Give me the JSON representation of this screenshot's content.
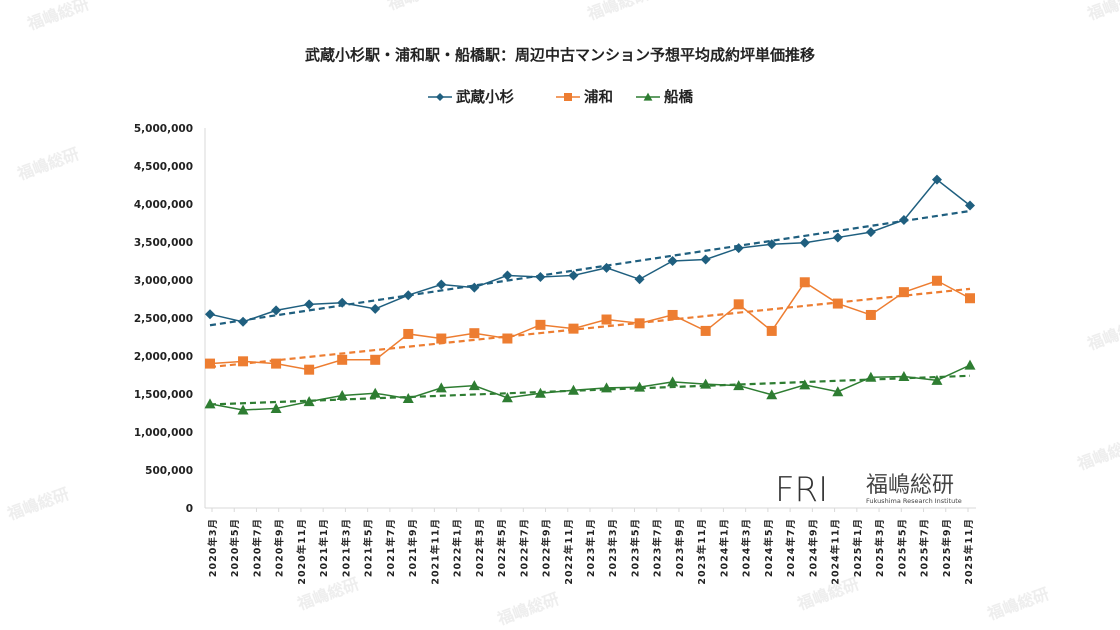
{
  "watermark": "福嶋総研",
  "logo": {
    "mark": "FRI",
    "name": "福嶋総研",
    "sub": "Fukushima Research Institute"
  },
  "chart_data": {
    "type": "line",
    "title": "武蔵小杉駅・浦和駅・船橋駅：周辺中古マンション予想平均成約坪単価推移",
    "legend_position": "top",
    "grid": false,
    "ylim": [
      0,
      5000000
    ],
    "yticks": [
      0,
      500000,
      1000000,
      1500000,
      2000000,
      2500000,
      3000000,
      3500000,
      4000000,
      4500000,
      5000000
    ],
    "ytick_labels": [
      "0",
      "500,000",
      "1,000,000",
      "1,500,000",
      "2,000,000",
      "2,500,000",
      "3,000,000",
      "3,500,000",
      "4,000,000",
      "4,500,000",
      "5,000,000"
    ],
    "xtick_labels": [
      "2020年3月",
      "2020年5月",
      "2020年7月",
      "2020年9月",
      "2020年11月",
      "2021年1月",
      "2021年3月",
      "2021年5月",
      "2021年7月",
      "2021年9月",
      "2021年11月",
      "2022年1月",
      "2022年3月",
      "2022年5月",
      "2022年7月",
      "2022年9月",
      "2022年11月",
      "2023年1月",
      "2023年3月",
      "2023年5月",
      "2023年7月",
      "2023年9月",
      "2023年11月",
      "2024年1月",
      "2024年3月",
      "2024年5月",
      "2024年7月",
      "2024年9月",
      "2024年11月",
      "2025年1月",
      "2025年3月",
      "2025年5月",
      "2025年7月",
      "2025年9月",
      "2025年11月"
    ],
    "trendline": "linear, dashed",
    "series": [
      {
        "name": "武蔵小杉",
        "color": "#1f5f7f",
        "marker": "diamond",
        "values": [
          2550000,
          2450000,
          2600000,
          2680000,
          2700000,
          2620000,
          2800000,
          2940000,
          2900000,
          3060000,
          3040000,
          3060000,
          3160000,
          3010000,
          3250000,
          3270000,
          3420000,
          3470000,
          3490000,
          3560000,
          3630000,
          3790000,
          4320000,
          3980000
        ]
      },
      {
        "name": "浦和",
        "color": "#ed7d31",
        "marker": "square",
        "values": [
          1900000,
          1930000,
          1900000,
          1820000,
          1950000,
          1950000,
          2290000,
          2230000,
          2300000,
          2230000,
          2410000,
          2360000,
          2480000,
          2430000,
          2540000,
          2330000,
          2680000,
          2330000,
          2970000,
          2690000,
          2540000,
          2840000,
          2990000,
          2760000
        ]
      },
      {
        "name": "船橋",
        "color": "#2e7d32",
        "marker": "triangle",
        "values": [
          1370000,
          1290000,
          1310000,
          1400000,
          1480000,
          1510000,
          1440000,
          1580000,
          1610000,
          1450000,
          1510000,
          1550000,
          1580000,
          1590000,
          1660000,
          1630000,
          1610000,
          1490000,
          1620000,
          1530000,
          1720000,
          1730000,
          1680000,
          1880000
        ]
      }
    ]
  }
}
